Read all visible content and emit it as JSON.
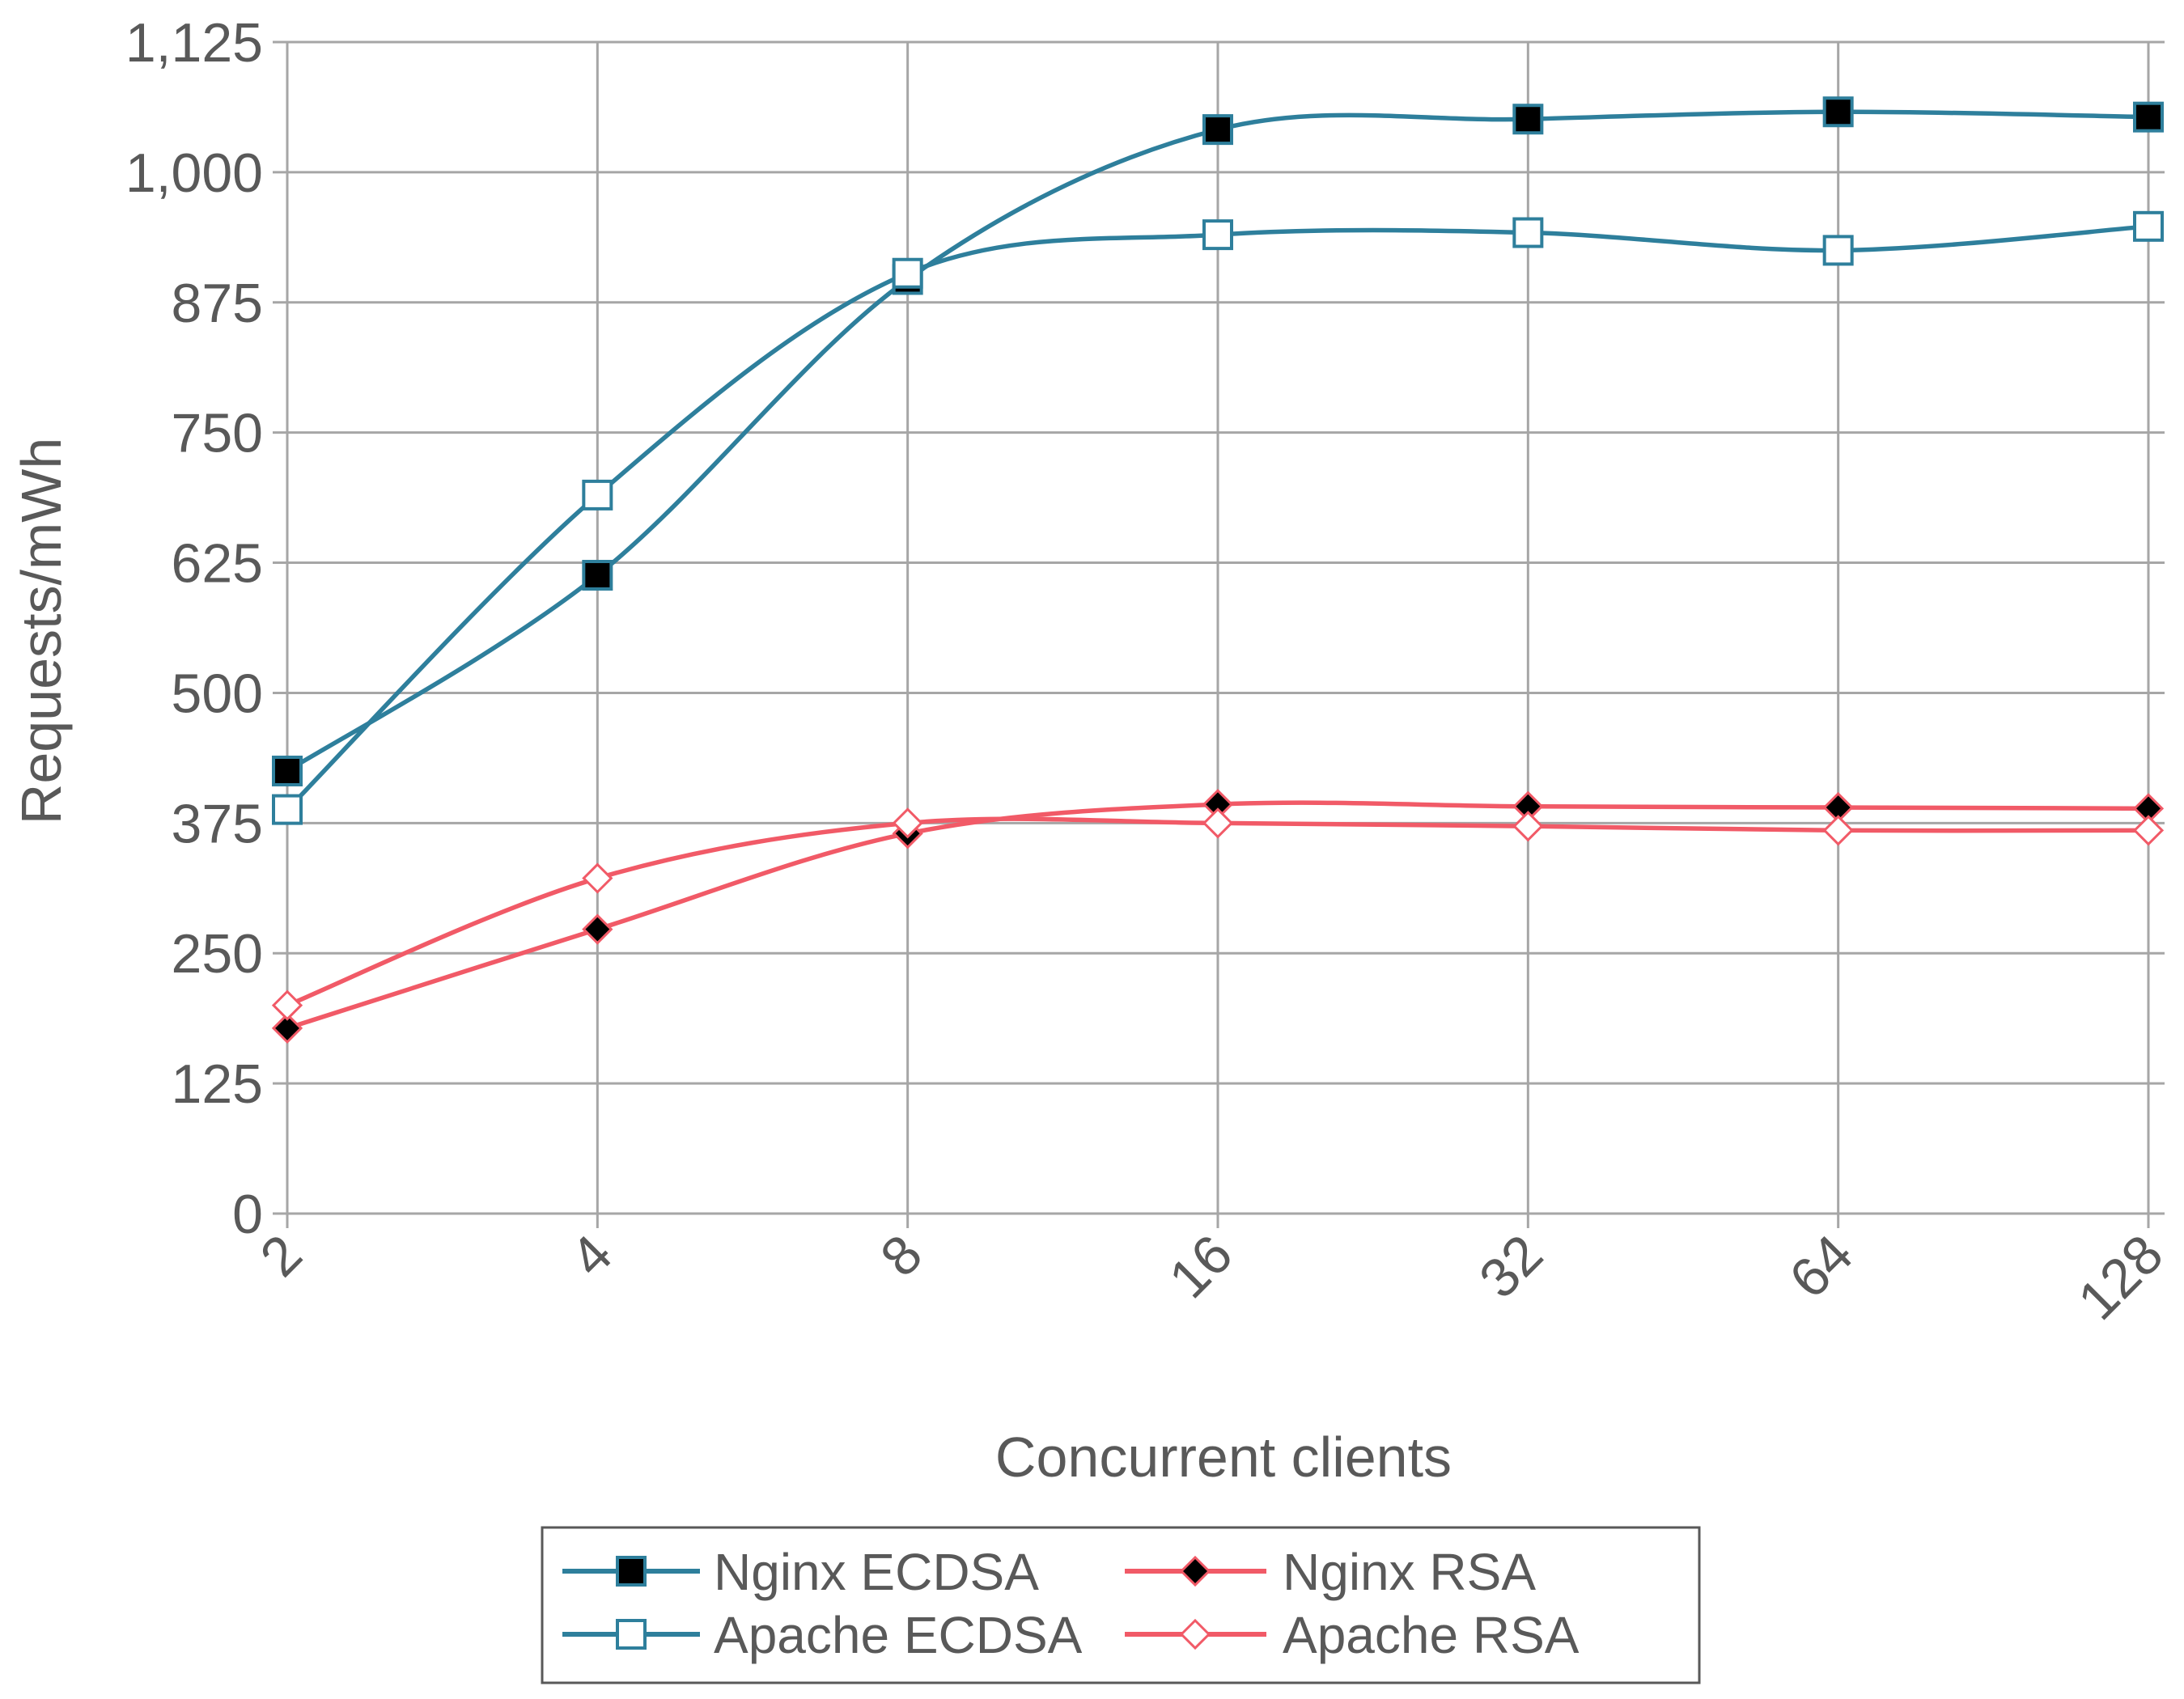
{
  "chart_data": {
    "type": "line",
    "title": "",
    "xlabel": "Concurrent clients",
    "ylabel": "Requests/mWh",
    "x_scale": "log2",
    "categories": [
      "2",
      "4",
      "8",
      "16",
      "32",
      "64",
      "128"
    ],
    "x": [
      2,
      4,
      8,
      16,
      32,
      64,
      128
    ],
    "ylim": [
      0,
      1125
    ],
    "yticks": [
      0,
      125,
      250,
      375,
      500,
      625,
      750,
      875,
      1000,
      1125
    ],
    "ytick_labels": [
      "0",
      "125",
      "250",
      "375",
      "500",
      "625",
      "750",
      "875",
      "1,000",
      "1,125"
    ],
    "grid": true,
    "legend_position": "bottom",
    "series": [
      {
        "name": "Nginx ECDSA",
        "values": [
          425,
          613,
          897,
          1041,
          1051,
          1058,
          1053
        ],
        "color": "#2e7f9c",
        "marker": "square-filled"
      },
      {
        "name": "Nginx RSA",
        "values": [
          178,
          273,
          365,
          393,
          391,
          390,
          389
        ],
        "color": "#f15a67",
        "marker": "diamond-filled"
      },
      {
        "name": "Apache ECDSA",
        "values": [
          388,
          690,
          903,
          940,
          942,
          925,
          948
        ],
        "color": "#2e7f9c",
        "marker": "square-open"
      },
      {
        "name": "Apache RSA",
        "values": [
          200,
          322,
          375,
          375,
          372,
          368,
          368
        ],
        "color": "#f15a67",
        "marker": "diamond-open"
      }
    ]
  }
}
